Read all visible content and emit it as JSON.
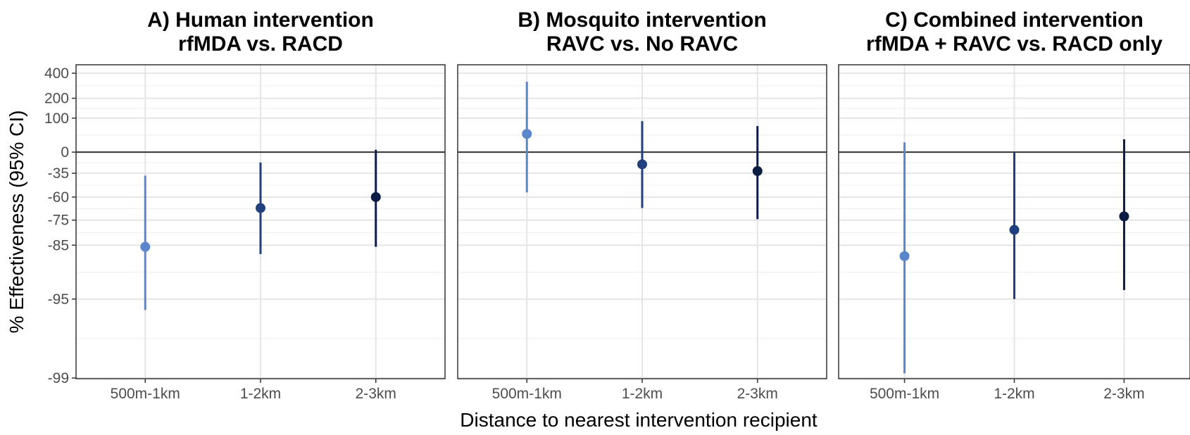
{
  "chart_data": {
    "type": "scatter",
    "subtype": "point-range (estimate with 95% CI), faceted",
    "xlabel": "Distance to nearest intervention recipient",
    "ylabel": "% Effectiveness (95% CI)",
    "categories": [
      "500m-1km",
      "1-2km",
      "2-3km"
    ],
    "y_scale": "log ratio: position = ln(1 + effectiveness/100)",
    "y_ticks": [
      400,
      200,
      100,
      0,
      -35,
      -60,
      -75,
      -85,
      -95,
      -99
    ],
    "ylim": [
      -99,
      400
    ],
    "grid": true,
    "legend": "none",
    "category_colors": [
      "#5b86c9",
      "#203f7c",
      "#0b1d44"
    ],
    "panels": [
      {
        "title_line1": "A) Human intervention",
        "title_line2": "rfMDA vs. RACD",
        "points": [
          {
            "category": "500m-1km",
            "estimate": -85.5,
            "lower": -96.0,
            "upper": -38.0
          },
          {
            "category": "1-2km",
            "estimate": -68.0,
            "lower": -87.5,
            "upper": -19.0
          },
          {
            "category": "2-3km",
            "estimate": -60.0,
            "lower": -85.5,
            "upper": 5.0
          }
        ]
      },
      {
        "title_line1": "B) Mosquito intervention",
        "title_line2": "RAVC vs. No RAVC",
        "points": [
          {
            "category": "500m-1km",
            "estimate": 45.0,
            "lower": -56.0,
            "upper": 320.0
          },
          {
            "category": "1-2km",
            "estimate": -22.0,
            "lower": -68.0,
            "upper": 88.0
          },
          {
            "category": "2-3km",
            "estimate": -32.0,
            "lower": -74.5,
            "upper": 70.0
          }
        ]
      },
      {
        "title_line1": "C) Combined intervention",
        "title_line2": "rfMDA + RAVC vs. RACD only",
        "points": [
          {
            "category": "500m-1km",
            "estimate": -88.0,
            "lower": -98.9,
            "upper": 22.0
          },
          {
            "category": "1-2km",
            "estimate": -79.5,
            "lower": -95.0,
            "upper": 0.0
          },
          {
            "category": "2-3km",
            "estimate": -73.0,
            "lower": -94.0,
            "upper": 30.0
          }
        ]
      }
    ]
  }
}
